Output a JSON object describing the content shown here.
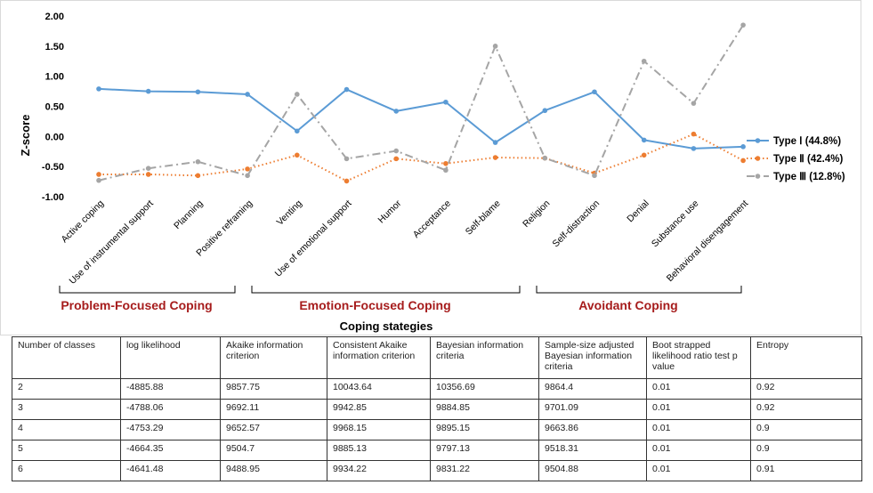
{
  "chart_data": {
    "type": "line",
    "ylabel": "Z-score",
    "xlabel": "Coping stategies",
    "ylim": [
      -1.0,
      2.0
    ],
    "yticks": [
      "2.00",
      "1.50",
      "1.00",
      "0.50",
      "0.00",
      "-0.50",
      "-1.00"
    ],
    "categories": [
      "Active coping",
      "Use of instrumental support",
      "Planning",
      "Positive reframing",
      "Venting",
      "Use of emotional support",
      "Humor",
      "Acceptance",
      "Self-blame",
      "Religion",
      "Self-distraction",
      "Denial",
      "Substance use",
      "Behavioral disengagement"
    ],
    "series": [
      {
        "name": "Type Ⅰ (44.8%)",
        "color": "#5b9bd5",
        "style": "solid",
        "marker": "circle",
        "values": [
          0.79,
          0.75,
          0.74,
          0.7,
          0.09,
          0.78,
          0.42,
          0.57,
          -0.1,
          0.43,
          0.74,
          -0.06,
          -0.2,
          -0.17
        ]
      },
      {
        "name": "Type Ⅱ (42.4%)",
        "color": "#ed7d31",
        "style": "dotted",
        "marker": "circle",
        "values": [
          -0.63,
          -0.63,
          -0.65,
          -0.54,
          -0.31,
          -0.74,
          -0.37,
          -0.45,
          -0.35,
          -0.36,
          -0.61,
          -0.31,
          0.04,
          -0.4
        ]
      },
      {
        "name": "Type Ⅲ (12.8%)",
        "color": "#a5a5a5",
        "style": "dashdot",
        "marker": "circle",
        "values": [
          -0.73,
          -0.53,
          -0.42,
          -0.65,
          0.7,
          -0.37,
          -0.24,
          -0.56,
          1.5,
          -0.36,
          -0.65,
          1.25,
          0.55,
          1.85
        ]
      }
    ],
    "groups": [
      {
        "label": "Problem-Focused Coping",
        "from": 0,
        "to": 3
      },
      {
        "label": "Emotion-Focused Coping",
        "from": 4,
        "to": 9
      },
      {
        "label": "Avoidant Coping",
        "from": 10,
        "to": 13
      }
    ],
    "legend_position": "right",
    "grid": false
  },
  "table": {
    "headers": [
      "Number of classes",
      "log likelihood",
      "Akaike information criterion",
      "Consistent Akaike information criterion",
      "Bayesian information criteria",
      "Sample-size adjusted Bayesian information criteria",
      "Boot strapped likelihood ratio test p value",
      "Entropy"
    ],
    "rows": [
      [
        "2",
        "-4885.88",
        "9857.75",
        "10043.64",
        "10356.69",
        "9864.4",
        "0.01",
        "0.92"
      ],
      [
        "3",
        "-4788.06",
        "9692.11",
        "9942.85",
        "9884.85",
        "9701.09",
        "0.01",
        "0.92"
      ],
      [
        "4",
        "-4753.29",
        "9652.57",
        "9968.15",
        "9895.15",
        "9663.86",
        "0.01",
        "0.9"
      ],
      [
        "5",
        "-4664.35",
        "9504.7",
        "9885.13",
        "9797.13",
        "9518.31",
        "0.01",
        "0.9"
      ],
      [
        "6",
        "-4641.48",
        "9488.95",
        "9934.22",
        "9831.22",
        "9504.88",
        "0.01",
        "0.91"
      ]
    ]
  }
}
